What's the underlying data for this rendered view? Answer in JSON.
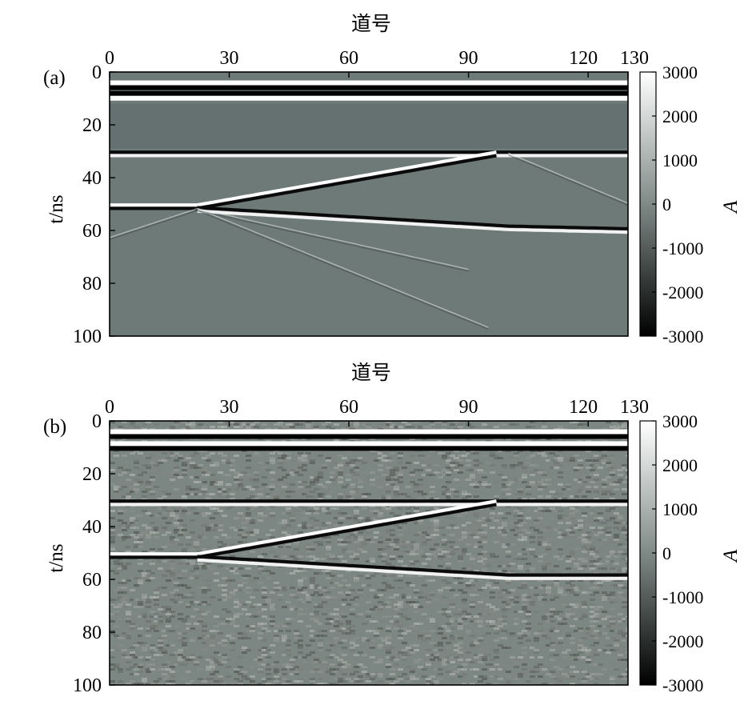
{
  "chart_data": [
    {
      "type": "heatmap",
      "panel_label": "(a)",
      "xlabel": "道号",
      "ylabel": "t/ns",
      "colorbar_label": "A",
      "x_ticks": [
        0,
        30,
        60,
        90,
        120,
        130
      ],
      "y_ticks": [
        0,
        20,
        40,
        60,
        80,
        100
      ],
      "xlim": [
        0,
        130
      ],
      "ylim": [
        0,
        100
      ],
      "y_axis_inverted": true,
      "colormap": "gray",
      "clim": [
        -3000,
        3000
      ],
      "colorbar_ticks": [
        3000,
        2000,
        1000,
        0,
        -1000,
        -2000,
        -3000
      ],
      "noise": false,
      "events": [
        {
          "kind": "direct-wave",
          "traces": [
            0,
            130
          ],
          "t": [
            5,
            5
          ],
          "polarity": "white-black"
        },
        {
          "kind": "direct-wave",
          "traces": [
            0,
            130
          ],
          "t": [
            9,
            9
          ],
          "polarity": "black-white"
        },
        {
          "kind": "reflector",
          "traces": [
            0,
            130
          ],
          "t": [
            31,
            31
          ],
          "polarity": "black-white"
        },
        {
          "kind": "reflector",
          "traces": [
            0,
            22
          ],
          "t": [
            51,
            51
          ],
          "polarity": "white-black"
        },
        {
          "kind": "dipping-reflector",
          "traces": [
            22,
            97
          ],
          "t": [
            51,
            31
          ],
          "polarity": "white-black"
        },
        {
          "kind": "reflector",
          "traces": [
            22,
            100,
            130
          ],
          "t": [
            52,
            59,
            60
          ],
          "polarity": "black-white"
        },
        {
          "kind": "diffraction",
          "traces": [
            22,
            95
          ],
          "t": [
            52,
            97
          ],
          "polarity": "faint"
        },
        {
          "kind": "diffraction",
          "traces": [
            22,
            90
          ],
          "t": [
            52,
            75
          ],
          "polarity": "faint"
        },
        {
          "kind": "diffraction",
          "traces": [
            22,
            0
          ],
          "t": [
            52,
            63
          ],
          "polarity": "faint"
        },
        {
          "kind": "diffraction",
          "traces": [
            100,
            130
          ],
          "t": [
            31,
            50
          ],
          "polarity": "faint"
        }
      ]
    },
    {
      "type": "heatmap",
      "panel_label": "(b)",
      "xlabel": "道号",
      "ylabel": "t/ns",
      "colorbar_label": "A",
      "x_ticks": [
        0,
        30,
        60,
        90,
        120,
        130
      ],
      "y_ticks": [
        0,
        20,
        40,
        60,
        80,
        100
      ],
      "xlim": [
        0,
        130
      ],
      "ylim": [
        0,
        100
      ],
      "y_axis_inverted": true,
      "colormap": "gray",
      "clim": [
        -3000,
        3000
      ],
      "colorbar_ticks": [
        3000,
        2000,
        1000,
        0,
        -1000,
        -2000,
        -3000
      ],
      "noise": true,
      "events": [
        {
          "kind": "direct-wave",
          "traces": [
            0,
            130
          ],
          "t": [
            5,
            5
          ],
          "polarity": "white-black"
        },
        {
          "kind": "direct-wave",
          "traces": [
            0,
            130
          ],
          "t": [
            9.5,
            9.5
          ],
          "polarity": "white-black"
        },
        {
          "kind": "reflector",
          "traces": [
            0,
            130
          ],
          "t": [
            31,
            31
          ],
          "polarity": "black-white"
        },
        {
          "kind": "reflector",
          "traces": [
            0,
            22
          ],
          "t": [
            51,
            51
          ],
          "polarity": "white-black"
        },
        {
          "kind": "dipping-reflector",
          "traces": [
            22,
            97
          ],
          "t": [
            51,
            31
          ],
          "polarity": "white-black"
        },
        {
          "kind": "reflector",
          "traces": [
            22,
            100,
            130
          ],
          "t": [
            52,
            59,
            59
          ],
          "polarity": "black-white"
        }
      ]
    }
  ]
}
